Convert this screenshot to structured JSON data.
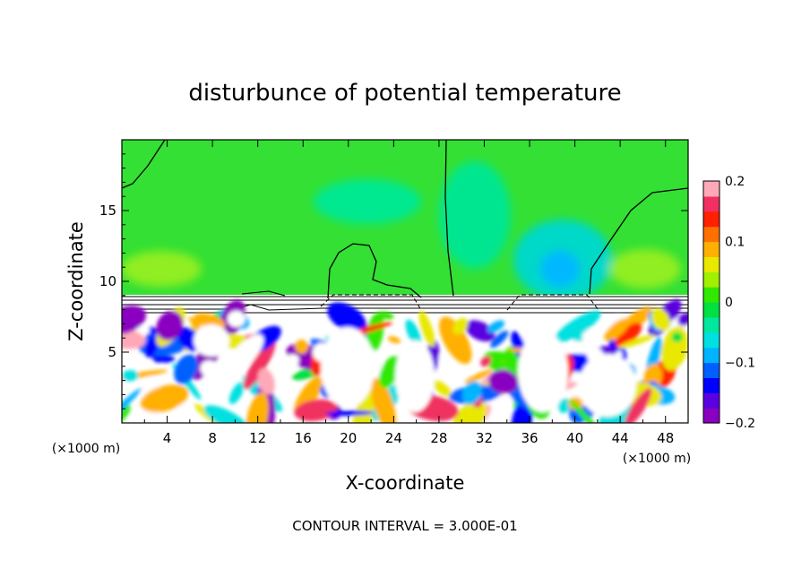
{
  "chart_data": {
    "type": "heatmap",
    "title": "disturbunce of potential temperature",
    "xlabel": "X-coordinate",
    "ylabel": "Z-coordinate",
    "x_unit": "(×1000 m)",
    "x_unit_right": "(×1000 m)",
    "xlim": [
      0,
      50
    ],
    "ylim": [
      0,
      20
    ],
    "xticks": [
      4,
      8,
      12,
      16,
      20,
      24,
      28,
      32,
      36,
      40,
      44,
      48
    ],
    "yticks": [
      5,
      10,
      15
    ],
    "colorbar": {
      "ticks": [
        "0.2",
        "0.1",
        "0",
        "−0.1",
        "−0.2"
      ],
      "range": [
        -0.2,
        0.2
      ]
    },
    "contour_note": "CONTOUR INTERVAL = 3.000E-01"
  },
  "colors": {
    "palette": [
      "#8a00c0",
      "#5a00e0",
      "#0000ff",
      "#0060ff",
      "#00b4ff",
      "#00e0e0",
      "#00e8a0",
      "#00e040",
      "#30e800",
      "#a0f000",
      "#e8e800",
      "#ffb000",
      "#ff7000",
      "#ff2000",
      "#f03060",
      "#ffa8b8"
    ],
    "background_field": "#32e032"
  }
}
